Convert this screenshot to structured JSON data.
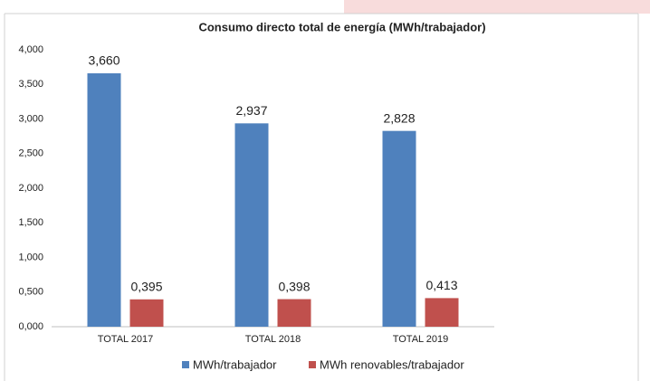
{
  "chart_data": {
    "type": "bar",
    "title": "Consumo directo total de energía (MWh/trabajador)",
    "categories": [
      "TOTAL 2017",
      "TOTAL 2018",
      "TOTAL 2019"
    ],
    "series": [
      {
        "name": "MWh/trabajador",
        "color": "#4f81bd",
        "values": [
          3.66,
          2.937,
          2.828
        ],
        "value_labels": [
          "3,660",
          "2,937",
          "2,828"
        ]
      },
      {
        "name": "MWh renovables/trabajador",
        "color": "#c0504d",
        "values": [
          0.395,
          0.398,
          0.413
        ],
        "value_labels": [
          "0,395",
          "0,398",
          "0,413"
        ]
      }
    ],
    "ylim": [
      0,
      4
    ],
    "yticks": [
      {
        "value": 0,
        "label": "0,000"
      },
      {
        "value": 0.5,
        "label": "0,500"
      },
      {
        "value": 1,
        "label": "1,000"
      },
      {
        "value": 1.5,
        "label": "1,500"
      },
      {
        "value": 2,
        "label": "2,000"
      },
      {
        "value": 2.5,
        "label": "2,500"
      },
      {
        "value": 3,
        "label": "3,000"
      },
      {
        "value": 3.5,
        "label": "3,500"
      },
      {
        "value": 4,
        "label": "4,000"
      }
    ],
    "legend": "bottom"
  }
}
